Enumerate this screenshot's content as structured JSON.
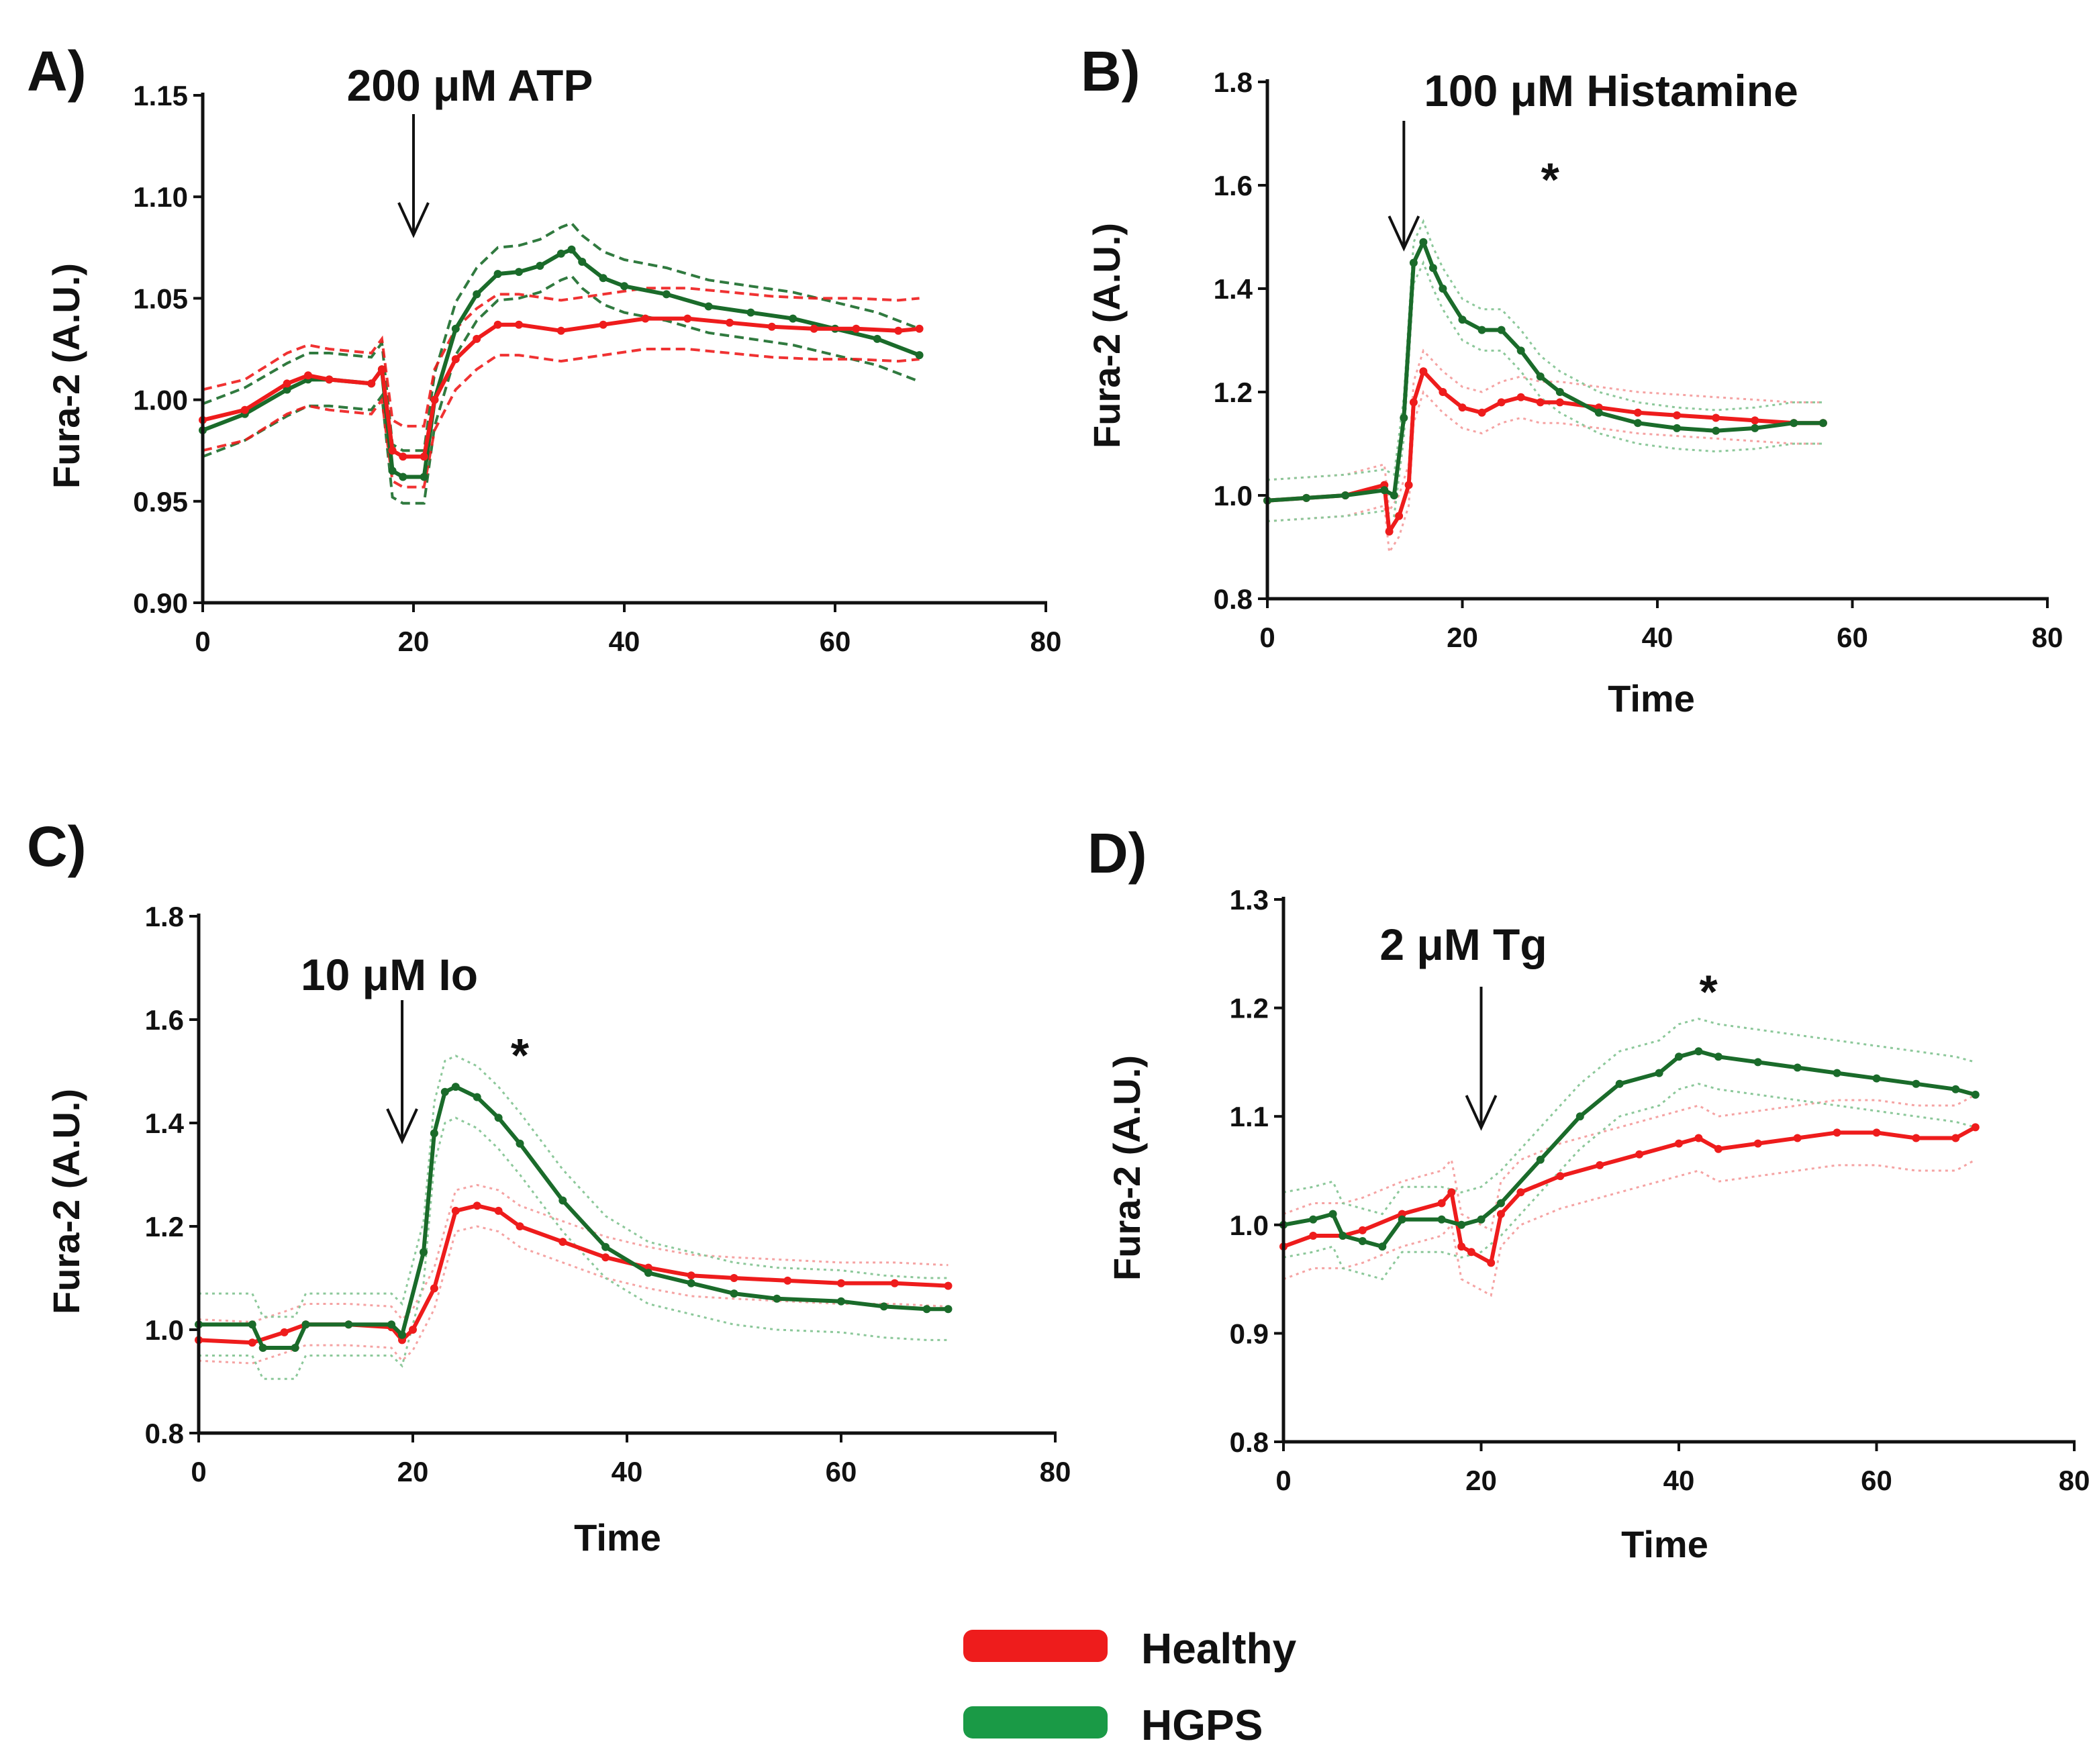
{
  "legend": [
    {
      "label": "Healthy",
      "color": "#ee1c1c"
    },
    {
      "label": "HGPS",
      "color": "#1a9a46"
    }
  ],
  "colors": {
    "healthy_line": "#ee1c1c",
    "healthy_band": "#f5a3a3",
    "hgps_line": "#1a6b2a",
    "hgps_band": "#8cc89a",
    "hgps_legend": "#1a9a46"
  },
  "chart_data": [
    {
      "id": "A",
      "panel_label": "A)",
      "type": "line",
      "stimulus": "200 μM ATP",
      "stimulus_time": 20,
      "ylabel": "Fura-2 (A.U.)",
      "xlabel": "",
      "xlim": [
        0,
        80
      ],
      "ylim": [
        0.9,
        1.15
      ],
      "xticks": [
        0,
        20,
        40,
        60,
        80
      ],
      "yticks": [
        0.9,
        0.95,
        1.0,
        1.05,
        1.1,
        1.15
      ],
      "tick_decimals": 2,
      "significance": "",
      "band_style": "dashed",
      "series": [
        {
          "name": "Healthy",
          "x": [
            0,
            4,
            8,
            10,
            12,
            16,
            17,
            18,
            19,
            21,
            22,
            24,
            26,
            28,
            30,
            34,
            38,
            42,
            46,
            50,
            54,
            58,
            62,
            66,
            68
          ],
          "values": [
            0.99,
            0.995,
            1.008,
            1.012,
            1.01,
            1.008,
            1.015,
            0.975,
            0.972,
            0.972,
            1.0,
            1.02,
            1.03,
            1.037,
            1.037,
            1.034,
            1.037,
            1.04,
            1.04,
            1.038,
            1.036,
            1.035,
            1.035,
            1.034,
            1.035
          ],
          "err": 0.015
        },
        {
          "name": "HGPS",
          "x": [
            0,
            4,
            8,
            10,
            12,
            16,
            17,
            18,
            19,
            21,
            22,
            24,
            26,
            28,
            30,
            32,
            34,
            35,
            36,
            38,
            40,
            44,
            48,
            52,
            56,
            60,
            64,
            68
          ],
          "values": [
            0.985,
            0.993,
            1.005,
            1.01,
            1.01,
            1.008,
            1.015,
            0.965,
            0.962,
            0.962,
            1.0,
            1.035,
            1.052,
            1.062,
            1.063,
            1.066,
            1.072,
            1.074,
            1.068,
            1.06,
            1.056,
            1.052,
            1.046,
            1.043,
            1.04,
            1.035,
            1.03,
            1.022
          ],
          "err": 0.013
        }
      ]
    },
    {
      "id": "B",
      "panel_label": "B)",
      "type": "line",
      "stimulus": "100 μM Histamine",
      "stimulus_time": 14,
      "ylabel": "Fura-2 (A.U.)",
      "xlabel": "Time",
      "xlim": [
        0,
        80
      ],
      "ylim": [
        0.8,
        1.8
      ],
      "xticks": [
        0,
        20,
        40,
        60,
        80
      ],
      "yticks": [
        0.8,
        1.0,
        1.2,
        1.4,
        1.6,
        1.8
      ],
      "tick_decimals": 1,
      "significance": "*",
      "significance_x": 29,
      "significance_y": 1.58,
      "band_style": "dotted",
      "series": [
        {
          "name": "Healthy",
          "x": [
            0,
            4,
            8,
            12,
            12.5,
            13.5,
            14.5,
            15,
            16,
            18,
            20,
            22,
            24,
            26,
            28,
            30,
            34,
            38,
            42,
            46,
            50,
            54,
            57
          ],
          "values": [
            0.99,
            0.995,
            1.0,
            1.02,
            0.93,
            0.96,
            1.02,
            1.18,
            1.24,
            1.2,
            1.17,
            1.16,
            1.18,
            1.19,
            1.18,
            1.18,
            1.17,
            1.16,
            1.155,
            1.15,
            1.145,
            1.14,
            1.14
          ],
          "err": 0.04
        },
        {
          "name": "HGPS",
          "x": [
            0,
            4,
            8,
            12,
            13,
            14,
            15,
            16,
            17,
            18,
            20,
            22,
            24,
            26,
            28,
            30,
            34,
            38,
            42,
            46,
            50,
            54,
            57
          ],
          "values": [
            0.99,
            0.995,
            1.0,
            1.01,
            1.0,
            1.15,
            1.45,
            1.49,
            1.44,
            1.4,
            1.34,
            1.32,
            1.32,
            1.28,
            1.23,
            1.2,
            1.16,
            1.14,
            1.13,
            1.125,
            1.13,
            1.14,
            1.14
          ],
          "err": 0.04
        }
      ]
    },
    {
      "id": "C",
      "panel_label": "C)",
      "type": "line",
      "stimulus": "10 μM Io",
      "stimulus_time": 19,
      "ylabel": "Fura-2 (A.U.)",
      "xlabel": "Time",
      "xlim": [
        0,
        80
      ],
      "ylim": [
        0.8,
        1.8
      ],
      "xticks": [
        0,
        20,
        40,
        60,
        80
      ],
      "yticks": [
        0.8,
        1.0,
        1.2,
        1.4,
        1.6,
        1.8
      ],
      "tick_decimals": 1,
      "significance": "*",
      "significance_x": 30,
      "significance_y": 1.5,
      "band_style": "dotted",
      "series": [
        {
          "name": "Healthy",
          "x": [
            0,
            5,
            8,
            10,
            14,
            18,
            19,
            20,
            22,
            24,
            26,
            28,
            30,
            34,
            38,
            42,
            46,
            50,
            55,
            60,
            65,
            70
          ],
          "values": [
            0.98,
            0.975,
            0.995,
            1.01,
            1.01,
            1.005,
            0.98,
            1.0,
            1.08,
            1.23,
            1.24,
            1.23,
            1.2,
            1.17,
            1.14,
            1.12,
            1.105,
            1.1,
            1.095,
            1.09,
            1.09,
            1.085
          ],
          "err": 0.04
        },
        {
          "name": "HGPS",
          "x": [
            0,
            5,
            6,
            9,
            10,
            14,
            18,
            19,
            21,
            22,
            23,
            24,
            26,
            28,
            30,
            34,
            38,
            42,
            46,
            50,
            54,
            60,
            64,
            68,
            70
          ],
          "values": [
            1.01,
            1.01,
            0.965,
            0.965,
            1.01,
            1.01,
            1.01,
            0.99,
            1.15,
            1.38,
            1.46,
            1.47,
            1.45,
            1.41,
            1.36,
            1.25,
            1.16,
            1.11,
            1.09,
            1.07,
            1.06,
            1.055,
            1.045,
            1.04,
            1.04
          ],
          "err": 0.06
        }
      ]
    },
    {
      "id": "D",
      "panel_label": "D)",
      "type": "line",
      "stimulus": "2 μM Tg",
      "stimulus_time": 20,
      "ylabel": "Fura-2 (A.U.)",
      "xlabel": "Time",
      "xlim": [
        0,
        80
      ],
      "ylim": [
        0.8,
        1.3
      ],
      "xticks": [
        0,
        20,
        40,
        60,
        80
      ],
      "yticks": [
        0.8,
        0.9,
        1.0,
        1.1,
        1.2,
        1.3
      ],
      "tick_decimals": 1,
      "significance": "*",
      "significance_x": 43,
      "significance_y": 1.2,
      "band_style": "dotted",
      "series": [
        {
          "name": "Healthy",
          "x": [
            0,
            3,
            6,
            8,
            12,
            16,
            17,
            18,
            19,
            21,
            22,
            24,
            28,
            32,
            36,
            40,
            42,
            44,
            48,
            52,
            56,
            60,
            64,
            68,
            70
          ],
          "values": [
            0.98,
            0.99,
            0.99,
            0.995,
            1.01,
            1.02,
            1.03,
            0.98,
            0.975,
            0.965,
            1.01,
            1.03,
            1.045,
            1.055,
            1.065,
            1.075,
            1.08,
            1.07,
            1.075,
            1.08,
            1.085,
            1.085,
            1.08,
            1.08,
            1.09
          ],
          "err": 0.03
        },
        {
          "name": "HGPS",
          "x": [
            0,
            3,
            5,
            6,
            8,
            10,
            12,
            16,
            18,
            20,
            22,
            26,
            30,
            34,
            38,
            40,
            42,
            44,
            48,
            52,
            56,
            60,
            64,
            68,
            70
          ],
          "values": [
            1.0,
            1.005,
            1.01,
            0.99,
            0.985,
            0.98,
            1.005,
            1.005,
            1.0,
            1.005,
            1.02,
            1.06,
            1.1,
            1.13,
            1.14,
            1.155,
            1.16,
            1.155,
            1.15,
            1.145,
            1.14,
            1.135,
            1.13,
            1.125,
            1.12
          ],
          "err": 0.03
        }
      ]
    }
  ]
}
